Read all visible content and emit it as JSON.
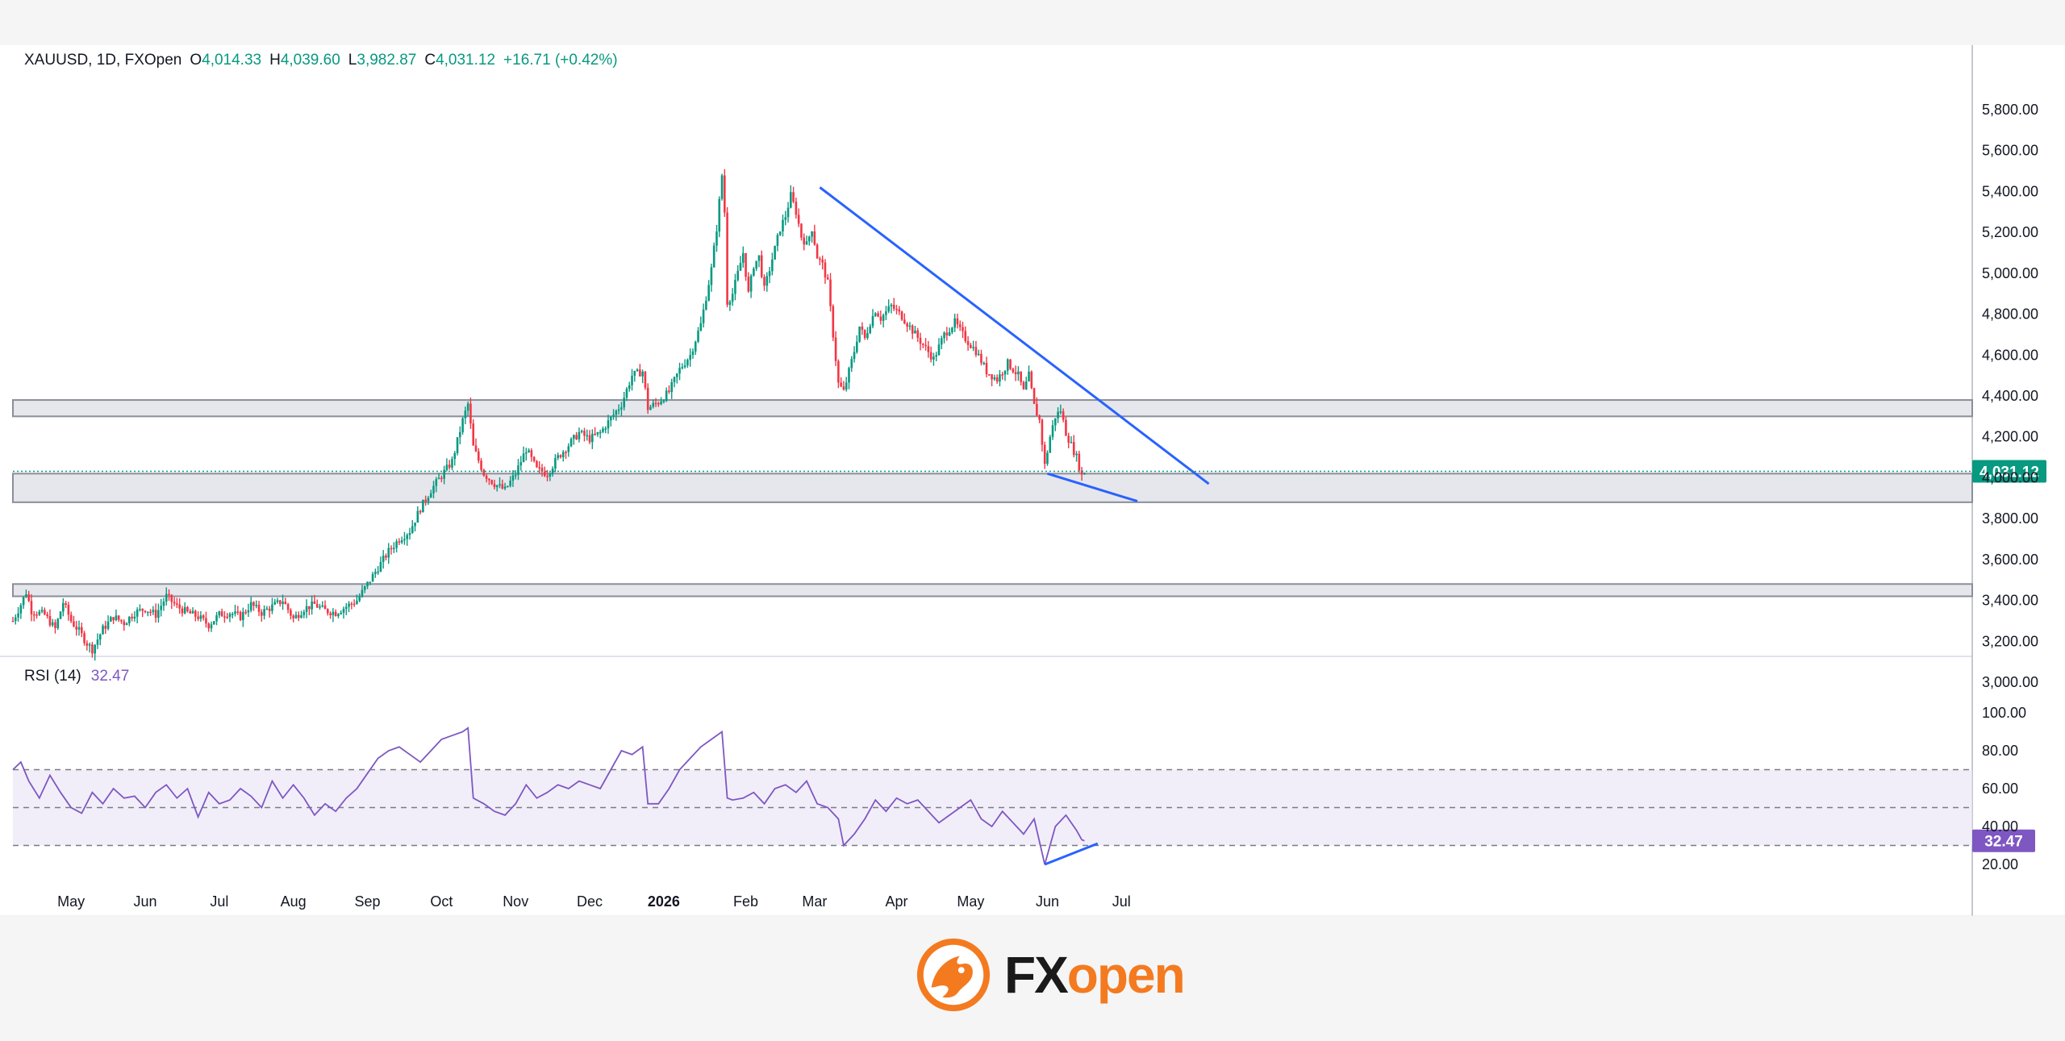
{
  "legend": {
    "symbol": "XAUUSD, 1D, FXOpen",
    "open_label": "O",
    "open": "4,014.33",
    "high_label": "H",
    "high": "4,039.60",
    "low_label": "L",
    "low": "3,982.87",
    "close_label": "C",
    "close": "4,031.12",
    "change": "+16.71 (+0.42%)"
  },
  "rsi_legend": {
    "label": "RSI (14)",
    "value": "32.47"
  },
  "brand": {
    "fx": "FX",
    "open": "open"
  },
  "colors": {
    "up": "#089981",
    "down": "#f23645",
    "trendline": "#2962ff",
    "rsi_line": "#7e57c2",
    "rsi_band": "#ede7f6",
    "zone_fill": "#d1d4dc",
    "price_tag": "#089981",
    "brand_orange": "#f47a20"
  },
  "chart_data": [
    {
      "type": "candlestick",
      "title": "XAUUSD, 1D, FXOpen",
      "ylim": [
        2900,
        5900
      ],
      "y_ticks": [
        "5,800.00",
        "5,600.00",
        "5,400.00",
        "5,200.00",
        "5,000.00",
        "4,800.00",
        "4,600.00",
        "4,400.00",
        "4,200.00",
        "4,000.00",
        "3,800.00",
        "3,600.00",
        "3,400.00",
        "3,200.00",
        "3,000.00"
      ],
      "y_tick_values": [
        5800,
        5600,
        5400,
        5200,
        5000,
        4800,
        4600,
        4400,
        4200,
        4000,
        3800,
        3600,
        3400,
        3200,
        3000
      ],
      "x_labels": [
        "May",
        "Jun",
        "Jul",
        "Aug",
        "Sep",
        "Oct",
        "Nov",
        "Dec",
        "2026",
        "Feb",
        "Mar",
        "Apr",
        "May",
        "Jun",
        "Jul"
      ],
      "x_label_days": [
        22,
        50,
        78,
        106,
        134,
        162,
        190,
        218,
        246,
        277,
        303,
        334,
        362,
        391,
        419
      ],
      "x_range_days": [
        0,
        433
      ],
      "last_price": "4,031.12",
      "last_price_value": 4031.12,
      "anchors": [
        [
          0,
          3300
        ],
        [
          3,
          3380
        ],
        [
          5,
          3440
        ],
        [
          7,
          3350
        ],
        [
          12,
          3330
        ],
        [
          16,
          3260
        ],
        [
          19,
          3390
        ],
        [
          22,
          3300
        ],
        [
          25,
          3250
        ],
        [
          28,
          3190
        ],
        [
          30,
          3160
        ],
        [
          34,
          3260
        ],
        [
          38,
          3320
        ],
        [
          42,
          3290
        ],
        [
          46,
          3340
        ],
        [
          50,
          3360
        ],
        [
          54,
          3330
        ],
        [
          58,
          3420
        ],
        [
          62,
          3370
        ],
        [
          66,
          3340
        ],
        [
          70,
          3320
        ],
        [
          74,
          3280
        ],
        [
          78,
          3330
        ],
        [
          82,
          3340
        ],
        [
          86,
          3320
        ],
        [
          90,
          3380
        ],
        [
          94,
          3340
        ],
        [
          98,
          3370
        ],
        [
          102,
          3400
        ],
        [
          106,
          3310
        ],
        [
          110,
          3360
        ],
        [
          114,
          3380
        ],
        [
          118,
          3350
        ],
        [
          122,
          3340
        ],
        [
          126,
          3370
        ],
        [
          130,
          3400
        ],
        [
          134,
          3480
        ],
        [
          138,
          3560
        ],
        [
          142,
          3640
        ],
        [
          146,
          3700
        ],
        [
          150,
          3740
        ],
        [
          154,
          3850
        ],
        [
          158,
          3940
        ],
        [
          162,
          4010
        ],
        [
          166,
          4080
        ],
        [
          170,
          4280
        ],
        [
          172,
          4360
        ],
        [
          174,
          4150
        ],
        [
          178,
          4020
        ],
        [
          182,
          3970
        ],
        [
          186,
          3940
        ],
        [
          190,
          4020
        ],
        [
          194,
          4140
        ],
        [
          198,
          4040
        ],
        [
          202,
          4020
        ],
        [
          206,
          4100
        ],
        [
          210,
          4160
        ],
        [
          214,
          4220
        ],
        [
          218,
          4190
        ],
        [
          222,
          4220
        ],
        [
          226,
          4290
        ],
        [
          230,
          4360
        ],
        [
          234,
          4500
        ],
        [
          238,
          4520
        ],
        [
          240,
          4340
        ],
        [
          244,
          4370
        ],
        [
          248,
          4420
        ],
        [
          252,
          4530
        ],
        [
          256,
          4600
        ],
        [
          260,
          4750
        ],
        [
          264,
          5020
        ],
        [
          266,
          5220
        ],
        [
          268,
          5480
        ],
        [
          269,
          5300
        ],
        [
          270,
          4860
        ],
        [
          272,
          4900
        ],
        [
          274,
          5000
        ],
        [
          276,
          5100
        ],
        [
          278,
          4900
        ],
        [
          280,
          5040
        ],
        [
          282,
          5080
        ],
        [
          284,
          4920
        ],
        [
          286,
          5020
        ],
        [
          288,
          5120
        ],
        [
          290,
          5220
        ],
        [
          292,
          5280
        ],
        [
          294,
          5380
        ],
        [
          296,
          5300
        ],
        [
          298,
          5180
        ],
        [
          300,
          5140
        ],
        [
          302,
          5220
        ],
        [
          304,
          5080
        ],
        [
          306,
          5040
        ],
        [
          308,
          4950
        ],
        [
          310,
          4700
        ],
        [
          312,
          4460
        ],
        [
          314,
          4420
        ],
        [
          316,
          4520
        ],
        [
          318,
          4620
        ],
        [
          320,
          4740
        ],
        [
          322,
          4680
        ],
        [
          324,
          4760
        ],
        [
          326,
          4820
        ],
        [
          328,
          4780
        ],
        [
          332,
          4840
        ],
        [
          336,
          4790
        ],
        [
          340,
          4720
        ],
        [
          344,
          4650
        ],
        [
          348,
          4580
        ],
        [
          352,
          4700
        ],
        [
          356,
          4760
        ],
        [
          360,
          4680
        ],
        [
          364,
          4620
        ],
        [
          368,
          4520
        ],
        [
          372,
          4480
        ],
        [
          376,
          4560
        ],
        [
          380,
          4500
        ],
        [
          382,
          4420
        ],
        [
          384,
          4500
        ],
        [
          386,
          4350
        ],
        [
          388,
          4280
        ],
        [
          390,
          4060
        ],
        [
          392,
          4200
        ],
        [
          394,
          4300
        ],
        [
          396,
          4330
        ],
        [
          398,
          4220
        ],
        [
          400,
          4160
        ],
        [
          402,
          4100
        ],
        [
          404,
          4010
        ],
        [
          405,
          4031
        ]
      ]
    },
    {
      "type": "line",
      "title": "RSI (14)",
      "ylim": [
        10,
        100
      ],
      "y_ticks": [
        "100.00",
        "80.00",
        "60.00",
        "40.00",
        "20.00"
      ],
      "y_tick_values": [
        100,
        80,
        60,
        40,
        20
      ],
      "levels": [
        70,
        50,
        30
      ],
      "last_value": "32.47",
      "last_value_number": 32.47,
      "x": [
        0,
        3,
        6,
        10,
        14,
        18,
        22,
        26,
        30,
        34,
        38,
        42,
        46,
        50,
        54,
        58,
        62,
        66,
        70,
        74,
        78,
        82,
        86,
        90,
        94,
        98,
        102,
        106,
        110,
        114,
        118,
        122,
        126,
        130,
        134,
        138,
        142,
        146,
        150,
        154,
        158,
        162,
        166,
        170,
        172,
        174,
        178,
        182,
        186,
        190,
        194,
        198,
        202,
        206,
        210,
        214,
        218,
        222,
        226,
        230,
        234,
        238,
        240,
        244,
        248,
        252,
        256,
        260,
        264,
        268,
        270,
        272,
        276,
        280,
        284,
        288,
        292,
        296,
        300,
        304,
        308,
        312,
        314,
        318,
        322,
        326,
        330,
        334,
        338,
        342,
        346,
        350,
        354,
        358,
        362,
        366,
        370,
        374,
        378,
        382,
        386,
        390,
        394,
        398,
        402,
        404,
        405
      ],
      "y": [
        70,
        74,
        64,
        55,
        67,
        58,
        50,
        47,
        58,
        52,
        60,
        55,
        56,
        50,
        58,
        62,
        55,
        60,
        45,
        58,
        52,
        54,
        60,
        56,
        50,
        64,
        55,
        62,
        55,
        46,
        52,
        48,
        55,
        60,
        68,
        76,
        80,
        82,
        78,
        74,
        80,
        86,
        88,
        90,
        92,
        55,
        52,
        48,
        46,
        52,
        62,
        55,
        58,
        62,
        60,
        64,
        62,
        60,
        70,
        80,
        78,
        82,
        52,
        52,
        60,
        70,
        76,
        82,
        86,
        90,
        55,
        54,
        55,
        58,
        52,
        60,
        62,
        58,
        64,
        52,
        50,
        44,
        30,
        36,
        44,
        54,
        48,
        55,
        52,
        54,
        48,
        42,
        46,
        50,
        54,
        44,
        40,
        48,
        42,
        36,
        44,
        20,
        40,
        46,
        38,
        33,
        32.47
      ]
    }
  ]
}
